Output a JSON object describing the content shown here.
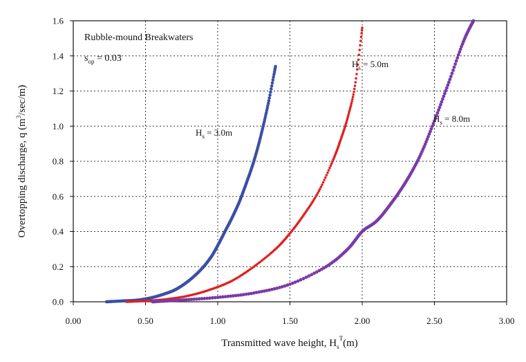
{
  "chart_data": {
    "type": "scatter",
    "title": "",
    "xlabel": {
      "main": "Transmitted wave height, H",
      "sub": "s",
      "sup": "T",
      "unit": "(m)"
    },
    "ylabel": {
      "main": "Overtopping discharge, q (m",
      "sup": "3",
      "unit": "/sec/m)"
    },
    "xlim": [
      0,
      3
    ],
    "ylim": [
      0,
      1.6
    ],
    "x_ticks": [
      "0.00",
      "0.50",
      "1.00",
      "1.50",
      "2.00",
      "2.50",
      "3.00"
    ],
    "y_ticks": [
      "0.0",
      "0.2",
      "0.4",
      "0.6",
      "0.8",
      "1.0",
      "1.2",
      "1.4",
      "1.6"
    ],
    "grid": true,
    "annotations": {
      "heading": "Rubble-mound Breakwaters",
      "steepness": {
        "main": "s",
        "sub": "op",
        "value": " = 0.03"
      }
    },
    "series": [
      {
        "label": {
          "main": "H",
          "sub": "s",
          "value": " = 3.0m"
        },
        "color": "#3a4fa6",
        "x": [
          0.23,
          0.35,
          0.45,
          0.55,
          0.65,
          0.72,
          0.8,
          0.88,
          0.95,
          1.0,
          1.05,
          1.1,
          1.15,
          1.2,
          1.25,
          1.3,
          1.35,
          1.4
        ],
        "y": [
          0.0,
          0.005,
          0.01,
          0.025,
          0.05,
          0.075,
          0.12,
          0.18,
          0.25,
          0.32,
          0.4,
          0.48,
          0.57,
          0.68,
          0.8,
          0.95,
          1.13,
          1.34
        ]
      },
      {
        "label": {
          "main": "H",
          "sub": "s",
          "value": " = 5.0m"
        },
        "color": "#e02020",
        "x": [
          0.37,
          0.5,
          0.65,
          0.8,
          0.95,
          1.1,
          1.25,
          1.4,
          1.5,
          1.6,
          1.7,
          1.8,
          1.85,
          1.9,
          1.95,
          2.0
        ],
        "y": [
          0.0,
          0.005,
          0.015,
          0.035,
          0.07,
          0.12,
          0.2,
          0.3,
          0.39,
          0.5,
          0.63,
          0.81,
          0.92,
          1.05,
          1.23,
          1.56
        ]
      },
      {
        "label": {
          "main": "H",
          "sub": "s",
          "value": " = 8.0m"
        },
        "color": "#7a3aa8",
        "x": [
          0.55,
          0.75,
          1.0,
          1.25,
          1.5,
          1.75,
          1.9,
          2.0,
          2.1,
          2.2,
          2.3,
          2.4,
          2.5,
          2.6,
          2.7,
          2.77
        ],
        "y": [
          0.0,
          0.01,
          0.025,
          0.05,
          0.1,
          0.2,
          0.3,
          0.4,
          0.46,
          0.56,
          0.68,
          0.83,
          1.03,
          1.25,
          1.48,
          1.6
        ]
      }
    ]
  }
}
